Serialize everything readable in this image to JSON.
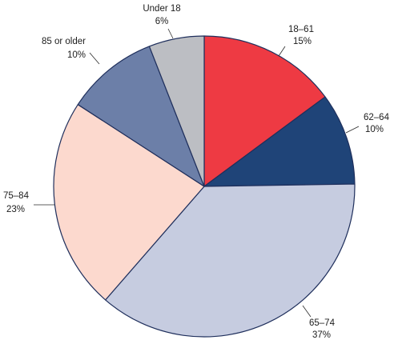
{
  "chart_data": {
    "type": "pie",
    "title": "",
    "slices": [
      {
        "label": "18–61",
        "percent_label": "15%",
        "value": 15,
        "color": "#ee3a43"
      },
      {
        "label": "62–64",
        "percent_label": "10%",
        "value": 10,
        "color": "#1f4478"
      },
      {
        "label": "65–74",
        "percent_label": "37%",
        "value": 37,
        "color": "#c6cce0"
      },
      {
        "label": "75–84",
        "percent_label": "23%",
        "value": 23,
        "color": "#fcd9ce"
      },
      {
        "label": "85 or older",
        "percent_label": "10%",
        "value": 10,
        "color": "#6c7fa8"
      },
      {
        "label": "Under 18",
        "percent_label": "6%",
        "value": 6,
        "color": "#bcbec3"
      }
    ],
    "start_angle": "12 o'clock",
    "direction": "clockwise",
    "outline_color": "#1f2f5c",
    "legend": "none"
  }
}
